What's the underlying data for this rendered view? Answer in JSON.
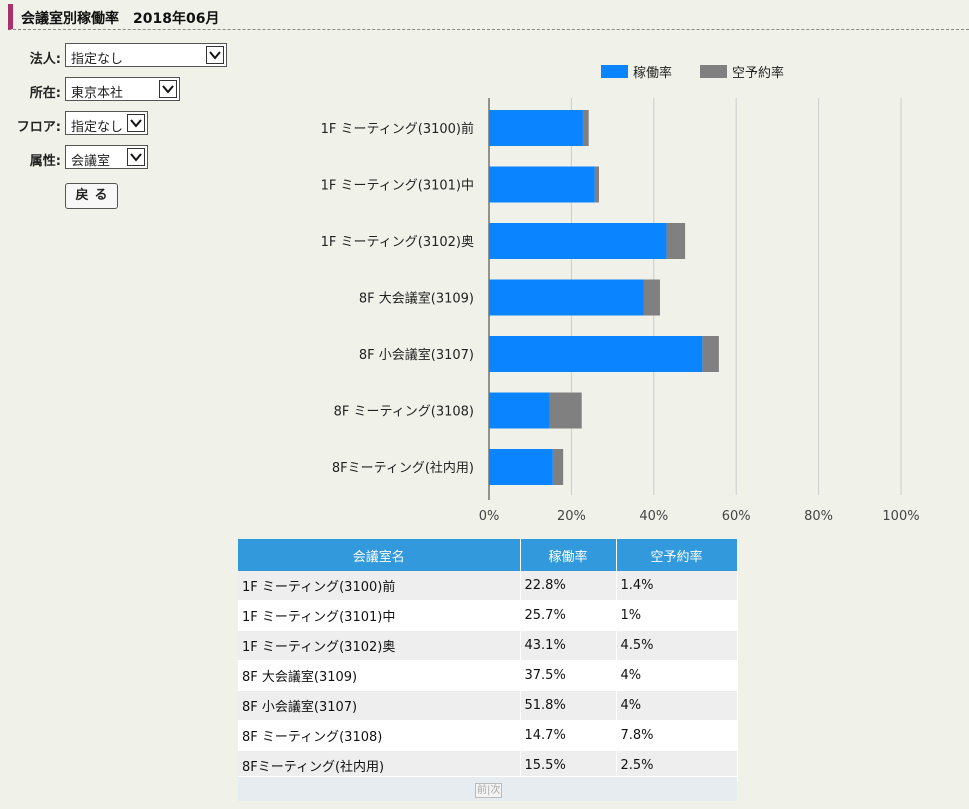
{
  "header": {
    "title": "会議室別稼働率　2018年06月"
  },
  "filters": [
    {
      "label": "法人:",
      "value": "指定なし"
    },
    {
      "label": "所在:",
      "value": "東京本社"
    },
    {
      "label": "フロア:",
      "value": "指定なし"
    },
    {
      "label": "属性:",
      "value": "会議室"
    }
  ],
  "back_button": {
    "label": "戻る"
  },
  "colors": {
    "utilization": "#0a84ff",
    "vacant_reservation": "#808080"
  },
  "chart_data": {
    "type": "bar",
    "orientation": "horizontal",
    "stacked": true,
    "categories": [
      "1F ミーティング(3100)前",
      "1F ミーティング(3101)中",
      "1F ミーティング(3102)奥",
      "8F 大会議室(3109)",
      "8F 小会議室(3107)",
      "8F ミーティング(3108)",
      "8Fミーティング(社内用)"
    ],
    "series": [
      {
        "name": "稼働率",
        "values": [
          22.8,
          25.7,
          43.1,
          37.5,
          51.8,
          14.7,
          15.5
        ]
      },
      {
        "name": "空予約率",
        "values": [
          1.4,
          1,
          4.5,
          4,
          4,
          7.8,
          2.5
        ]
      }
    ],
    "xlim": [
      0,
      100
    ],
    "xticks": [
      "0%",
      "20%",
      "40%",
      "60%",
      "80%",
      "100%"
    ],
    "grid": true,
    "legend": "top-right"
  },
  "table": {
    "headers": [
      "会議室名",
      "稼働率",
      "空予約率"
    ],
    "rows": [
      [
        "1F ミーティング(3100)前",
        "22.8%",
        "1.4%"
      ],
      [
        "1F ミーティング(3101)中",
        "25.7%",
        "1%"
      ],
      [
        "1F ミーティング(3102)奥",
        "43.1%",
        "4.5%"
      ],
      [
        "8F 大会議室(3109)",
        "37.5%",
        "4%"
      ],
      [
        "8F 小会議室(3107)",
        "51.8%",
        "4%"
      ],
      [
        "8F ミーティング(3108)",
        "14.7%",
        "7.8%"
      ],
      [
        "8Fミーティング(社内用)",
        "15.5%",
        "2.5%"
      ]
    ]
  },
  "pager": {
    "label": "前|次"
  }
}
